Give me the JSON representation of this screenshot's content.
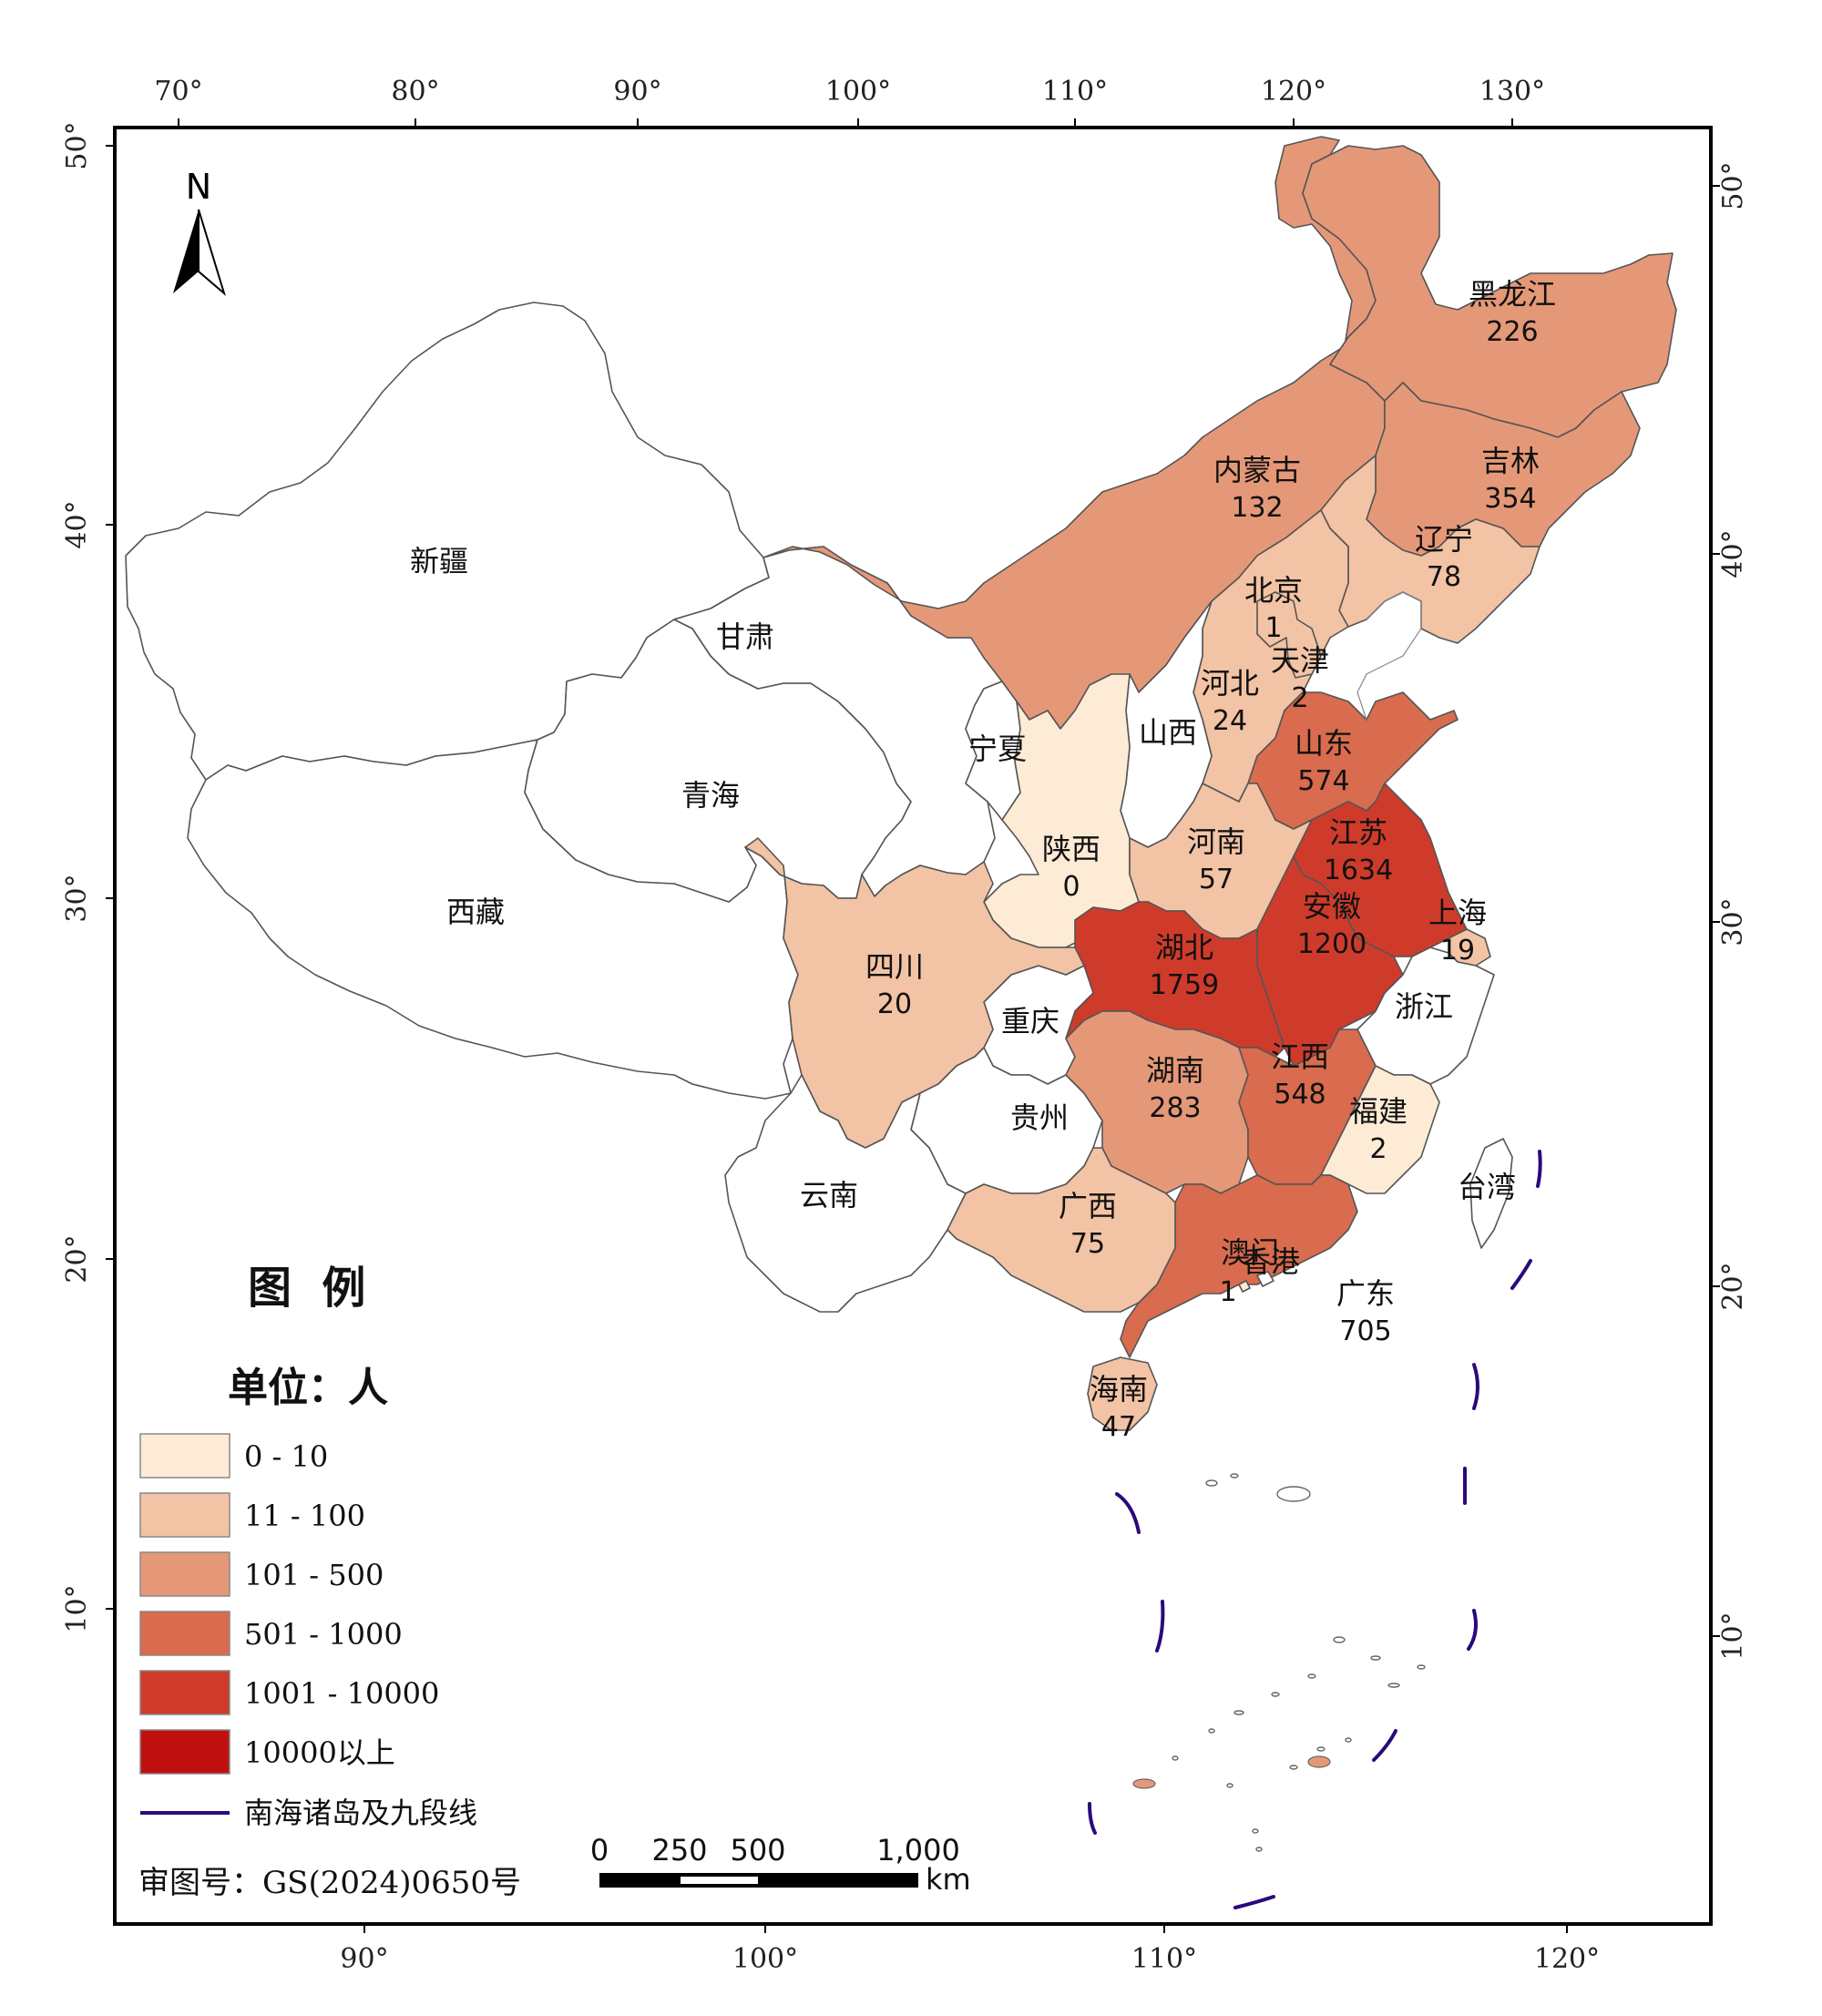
{
  "map": {
    "north_label": "N",
    "approval_number": "审图号：GS(2024)0650号",
    "top_lon_ticks": [
      "70°",
      "80°",
      "90°",
      "100°",
      "110°",
      "120°",
      "130°"
    ],
    "bottom_lon_ticks": [
      "90°",
      "100°",
      "110°",
      "120°"
    ],
    "left_lat_ticks": [
      "50°",
      "40°",
      "30°",
      "20°",
      "10°"
    ],
    "right_lat_ticks": [
      "50°",
      "40°",
      "30°",
      "20°",
      "10°"
    ]
  },
  "legend": {
    "title": "图  例",
    "unit": "单位：人",
    "classes": [
      {
        "label": "0 - 10",
        "color": "#fdebd6"
      },
      {
        "label": "11 - 100",
        "color": "#f2c3a4"
      },
      {
        "label": "101 - 500",
        "color": "#e59878"
      },
      {
        "label": "501 - 1000",
        "color": "#d96b4e"
      },
      {
        "label": "1001 - 10000",
        "color": "#cf3b2b"
      },
      {
        "label": "10000以上",
        "color": "#c00f0f"
      }
    ],
    "nine_dash_label": "南海诸岛及九段线",
    "nine_dash_color": "#2a0a7a"
  },
  "scale_bar": {
    "ticks": [
      "0",
      "250",
      "500",
      "1,000"
    ],
    "unit": "km"
  },
  "provinces": [
    {
      "name": "黑龙江",
      "value": "226",
      "cls": 2
    },
    {
      "name": "吉林",
      "value": "354",
      "cls": 2
    },
    {
      "name": "辽宁",
      "value": "78",
      "cls": 1
    },
    {
      "name": "内蒙古",
      "value": "132",
      "cls": 2
    },
    {
      "name": "北京",
      "value": "1",
      "cls": 0
    },
    {
      "name": "天津",
      "value": "2",
      "cls": 0
    },
    {
      "name": "河北",
      "value": "24",
      "cls": 1
    },
    {
      "name": "山西",
      "value": "",
      "cls": -1
    },
    {
      "name": "山东",
      "value": "574",
      "cls": 3
    },
    {
      "name": "河南",
      "value": "57",
      "cls": 1
    },
    {
      "name": "江苏",
      "value": "1634",
      "cls": 4
    },
    {
      "name": "安徽",
      "value": "1200",
      "cls": 4
    },
    {
      "name": "上海",
      "value": "19",
      "cls": 1
    },
    {
      "name": "浙江",
      "value": "",
      "cls": -1
    },
    {
      "name": "湖北",
      "value": "1759",
      "cls": 4
    },
    {
      "name": "江西",
      "value": "548",
      "cls": 3
    },
    {
      "name": "福建",
      "value": "2",
      "cls": 0
    },
    {
      "name": "湖南",
      "value": "283",
      "cls": 2
    },
    {
      "name": "广东",
      "value": "705",
      "cls": 3
    },
    {
      "name": "广西",
      "value": "75",
      "cls": 1
    },
    {
      "name": "海南",
      "value": "47",
      "cls": 1
    },
    {
      "name": "陕西",
      "value": "0",
      "cls": 0
    },
    {
      "name": "宁夏",
      "value": "",
      "cls": -1
    },
    {
      "name": "甘肃",
      "value": "",
      "cls": -1
    },
    {
      "name": "青海",
      "value": "",
      "cls": -1
    },
    {
      "name": "新疆",
      "value": "",
      "cls": -1
    },
    {
      "name": "西藏",
      "value": "",
      "cls": -1
    },
    {
      "name": "四川",
      "value": "20",
      "cls": 1
    },
    {
      "name": "重庆",
      "value": "",
      "cls": -1
    },
    {
      "name": "贵州",
      "value": "",
      "cls": -1
    },
    {
      "name": "云南",
      "value": "",
      "cls": -1
    },
    {
      "name": "台湾",
      "value": "",
      "cls": -1
    },
    {
      "name": "香港",
      "value": "",
      "cls": -1
    },
    {
      "name": "澳门",
      "value": "1",
      "cls": 0
    }
  ]
}
